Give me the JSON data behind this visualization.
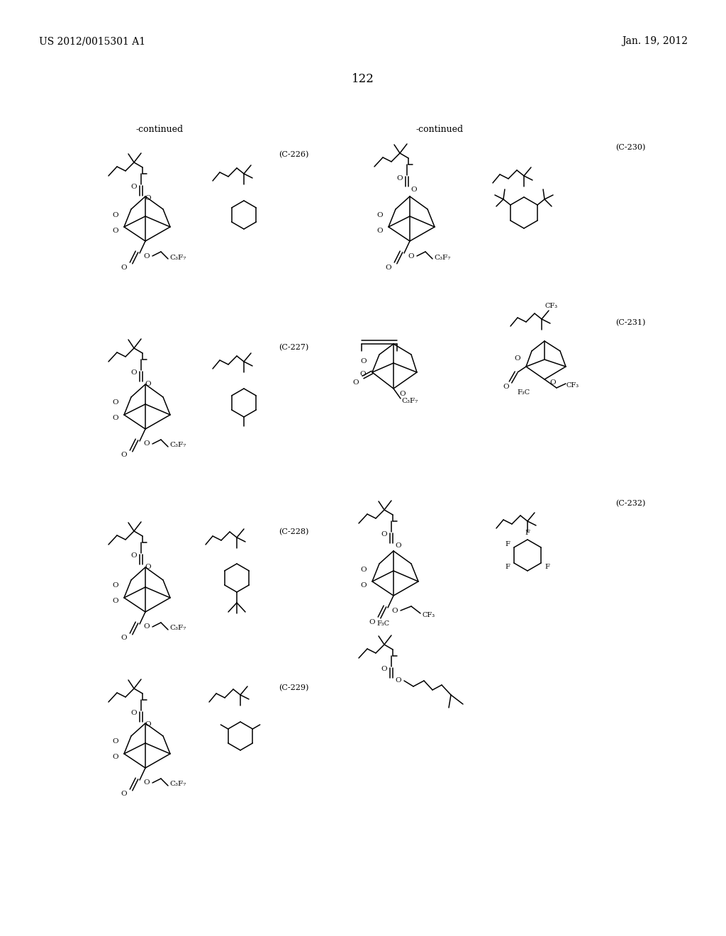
{
  "background_color": "#ffffff",
  "page_header_left": "US 2012/0015301 A1",
  "page_header_right": "Jan. 19, 2012",
  "page_number": "122",
  "continued_left": "-continued",
  "continued_right": "-continued",
  "compound_labels": [
    "(C-226)",
    "(C-227)",
    "(C-228)",
    "(C-229)",
    "(C-230)",
    "(C-231)",
    "(C-232)"
  ]
}
